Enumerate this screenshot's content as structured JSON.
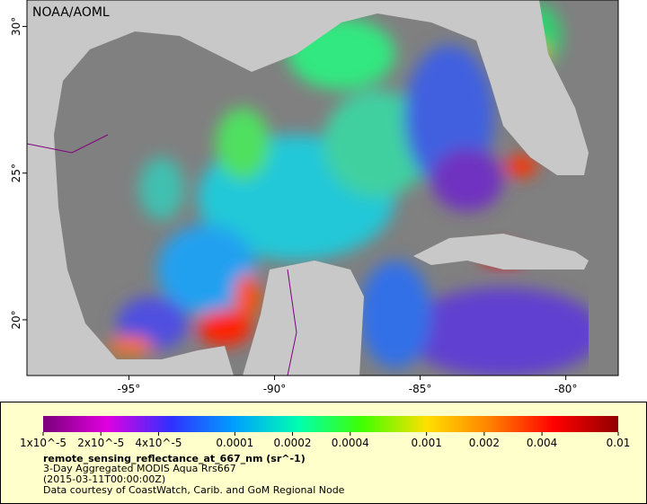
{
  "map": {
    "credit": "NOAA/AOML",
    "lonlim": [
      -98.5,
      -78.2
    ],
    "latlim": [
      18.1,
      30.9
    ],
    "lonticks": [
      {
        "value": -95,
        "label": "-95°"
      },
      {
        "value": -90,
        "label": "-90°"
      },
      {
        "value": -85,
        "label": "-85°"
      },
      {
        "value": -80,
        "label": "-80°"
      }
    ],
    "latticks": [
      {
        "value": 30,
        "label": "30°"
      },
      {
        "value": 25,
        "label": "25°"
      },
      {
        "value": 20,
        "label": "20°"
      }
    ]
  },
  "legend": {
    "colorbar": {
      "lim": [
        1e-05,
        0.01
      ],
      "log": true,
      "colors": [
        "#7a007a",
        "#e000e0",
        "#3030ff",
        "#00a0ff",
        "#00ffb0",
        "#40ff00",
        "#ffe000",
        "#ff8000",
        "#ff0000",
        "#900000"
      ],
      "ticks": [
        {
          "value": 1e-05,
          "label": "1x10^-5"
        },
        {
          "value": 2e-05,
          "label": "2x10^-5"
        },
        {
          "value": 4e-05,
          "label": "4x10^-5"
        },
        0.0001,
        0.0002,
        0.0004,
        0.001,
        0.002,
        0.004,
        0.01
      ]
    },
    "variable": "remote_sensing_reflectance_at_667_nm (sr^-1)",
    "dataset": "3-Day Aggregated MODIS Aqua Rrs667",
    "time": "(2015-03-11T00:00:00Z)",
    "courtesy": "Data courtesy of CoastWatch, Carib. and GoM Regional Node"
  }
}
